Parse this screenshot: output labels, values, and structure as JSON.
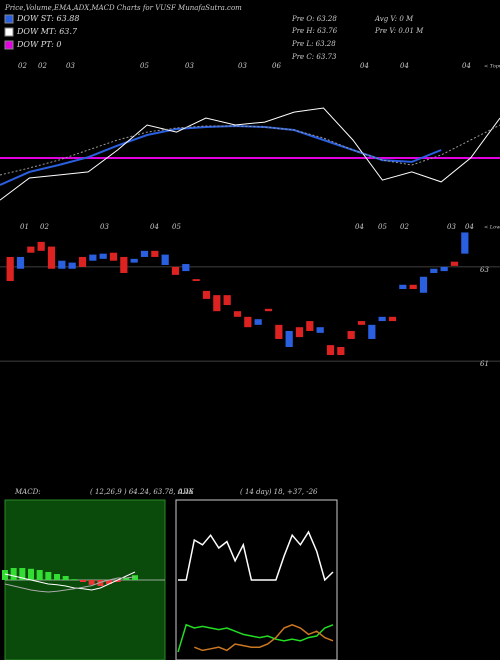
{
  "header": {
    "title": "Price,Volume,EMA,ADX,MACD Charts for VUSF MunafaSutra.com",
    "legend": [
      {
        "label": "DOW ST: 63.88",
        "color": "#2a5fe0"
      },
      {
        "label": "DOW MT: 63.7",
        "color": "#ffffff"
      },
      {
        "label": "DOW PT: 0",
        "color": "#e000e0"
      }
    ],
    "info": [
      "Pre  O: 63.28",
      "Pre  H: 63.76",
      "Pre  L: 63.28",
      "Pre  C: 63.73"
    ],
    "info2": [
      "Avg V: 0  M",
      "Pre  V: 0.01 M"
    ]
  },
  "chart_data": [
    {
      "type": "line",
      "corner_label": "< Topu",
      "date_labels": [
        "02",
        "02",
        "03",
        "05",
        "03",
        "03",
        "06",
        "04",
        "04",
        "04"
      ],
      "ylim": [
        0,
        100
      ],
      "hline": {
        "value": 32.4,
        "color": "#e000e0"
      },
      "series": [
        {
          "color": "#2a5fe0",
          "width": 2,
          "values": [
            13.8,
            22.8,
            27.6,
            33,
            41,
            48.3,
            52.4,
            53.8,
            54.5,
            53.8,
            51.7,
            44.8,
            37.9,
            31,
            29.7,
            37.9,
            null,
            null
          ]
        },
        {
          "color": "#ffffff",
          "width": 1,
          "values": [
            3.4,
            18.6,
            20.7,
            22.8,
            37.9,
            55.2,
            50.3,
            60,
            55.2,
            57.2,
            64.1,
            66.9,
            44.8,
            17.2,
            22.8,
            15.9,
            32.4,
            60
          ]
        },
        {
          "color": "#999999",
          "width": 1,
          "dash": true,
          "values": [
            20.7,
            25.5,
            31,
            37.9,
            44.8,
            50.3,
            53.1,
            54.5,
            54.5,
            53.8,
            51.7,
            46.2,
            37.9,
            31,
            27.6,
            34.5,
            44.8,
            55.2
          ]
        }
      ]
    },
    {
      "type": "candlestick",
      "corner_label": "< Lower",
      "date_labels": [
        "01",
        "02",
        "03",
        "04",
        "05",
        "04",
        "05",
        "02",
        "03",
        "04"
      ],
      "up_color": "#2a5fe0",
      "down_color": "#dd2222",
      "ylim": [
        60.6,
        64.1
      ],
      "yticks": [
        63,
        61
      ],
      "grid": true,
      "open": [
        63.21,
        62.96,
        63.43,
        63.53,
        63.43,
        62.96,
        62.96,
        63.21,
        63.13,
        63.17,
        63.3,
        63.21,
        63.09,
        63.21,
        63.34,
        63.04,
        63.0,
        62.91,
        62.74,
        62.49,
        62.4,
        62.4,
        62.06,
        61.94,
        61.77,
        62.11,
        61.77,
        61.3,
        61.72,
        61.85,
        61.6,
        61.34,
        61.3,
        61.64,
        61.85,
        61.47,
        61.85,
        61.94,
        62.53,
        62.62,
        62.45,
        62.87,
        62.91,
        63.11,
        63.28
      ],
      "close": [
        62.7,
        63.21,
        63.3,
        63.34,
        62.96,
        63.13,
        63.09,
        63.0,
        63.26,
        63.28,
        63.13,
        62.87,
        63.17,
        63.34,
        63.21,
        63.26,
        62.83,
        63.06,
        62.7,
        62.32,
        62.06,
        62.19,
        61.94,
        61.72,
        61.89,
        62.06,
        61.47,
        61.64,
        61.51,
        61.64,
        61.72,
        61.13,
        61.13,
        61.47,
        61.77,
        61.77,
        61.94,
        61.85,
        62.62,
        62.53,
        62.79,
        62.96,
        63.0,
        63.02,
        63.73
      ]
    },
    {
      "type": "macd",
      "title": "MACD:",
      "params": "( 12,26,9 ) 64.24, 63.78, 0.46",
      "background": "#0a4a0a",
      "up_color": "#33dd33",
      "down_color": "#ee3333",
      "ylim": [
        -2,
        2
      ],
      "histogram": [
        0.25,
        0.3,
        0.3,
        0.28,
        0.25,
        0.2,
        0.15,
        0.1,
        0.02,
        -0.05,
        -0.12,
        -0.15,
        -0.1,
        -0.05,
        0.05,
        0.12
      ],
      "series": [
        {
          "color": "#ffffff",
          "values": [
            0.15,
            0.1,
            0.05,
            0.0,
            -0.05,
            -0.1,
            -0.12,
            -0.15,
            -0.2,
            -0.22,
            -0.25,
            -0.2,
            -0.1,
            0,
            0.1,
            0.2
          ]
        },
        {
          "color": "#aaaaaa",
          "values": [
            -0.1,
            -0.15,
            -0.2,
            -0.25,
            -0.28,
            -0.3,
            -0.28,
            -0.25,
            -0.22,
            -0.18,
            -0.14,
            -0.06,
            0,
            0.05,
            0.05,
            0.08
          ]
        }
      ]
    },
    {
      "type": "adx",
      "title": "ADX",
      "params": "( 14  day) 18, +37, -26",
      "ylim": [
        0,
        100
      ],
      "series": [
        {
          "color": "#ffffff",
          "values": [
            50,
            50,
            75,
            72,
            78,
            70,
            74,
            62,
            72,
            50,
            50,
            50,
            50,
            65,
            78,
            72,
            80,
            68,
            50,
            55
          ]
        },
        {
          "color": "#22dd22",
          "values": [
            5,
            22,
            20,
            21,
            20,
            19,
            20,
            18,
            16,
            15,
            14,
            15,
            13,
            12,
            13,
            12,
            14,
            15,
            20,
            22
          ]
        },
        {
          "color": "#cc7722",
          "values": [
            null,
            null,
            8,
            6,
            7,
            8,
            6,
            10,
            9,
            8,
            8,
            10,
            14,
            20,
            22,
            20,
            16,
            18,
            14,
            12
          ]
        }
      ]
    }
  ]
}
